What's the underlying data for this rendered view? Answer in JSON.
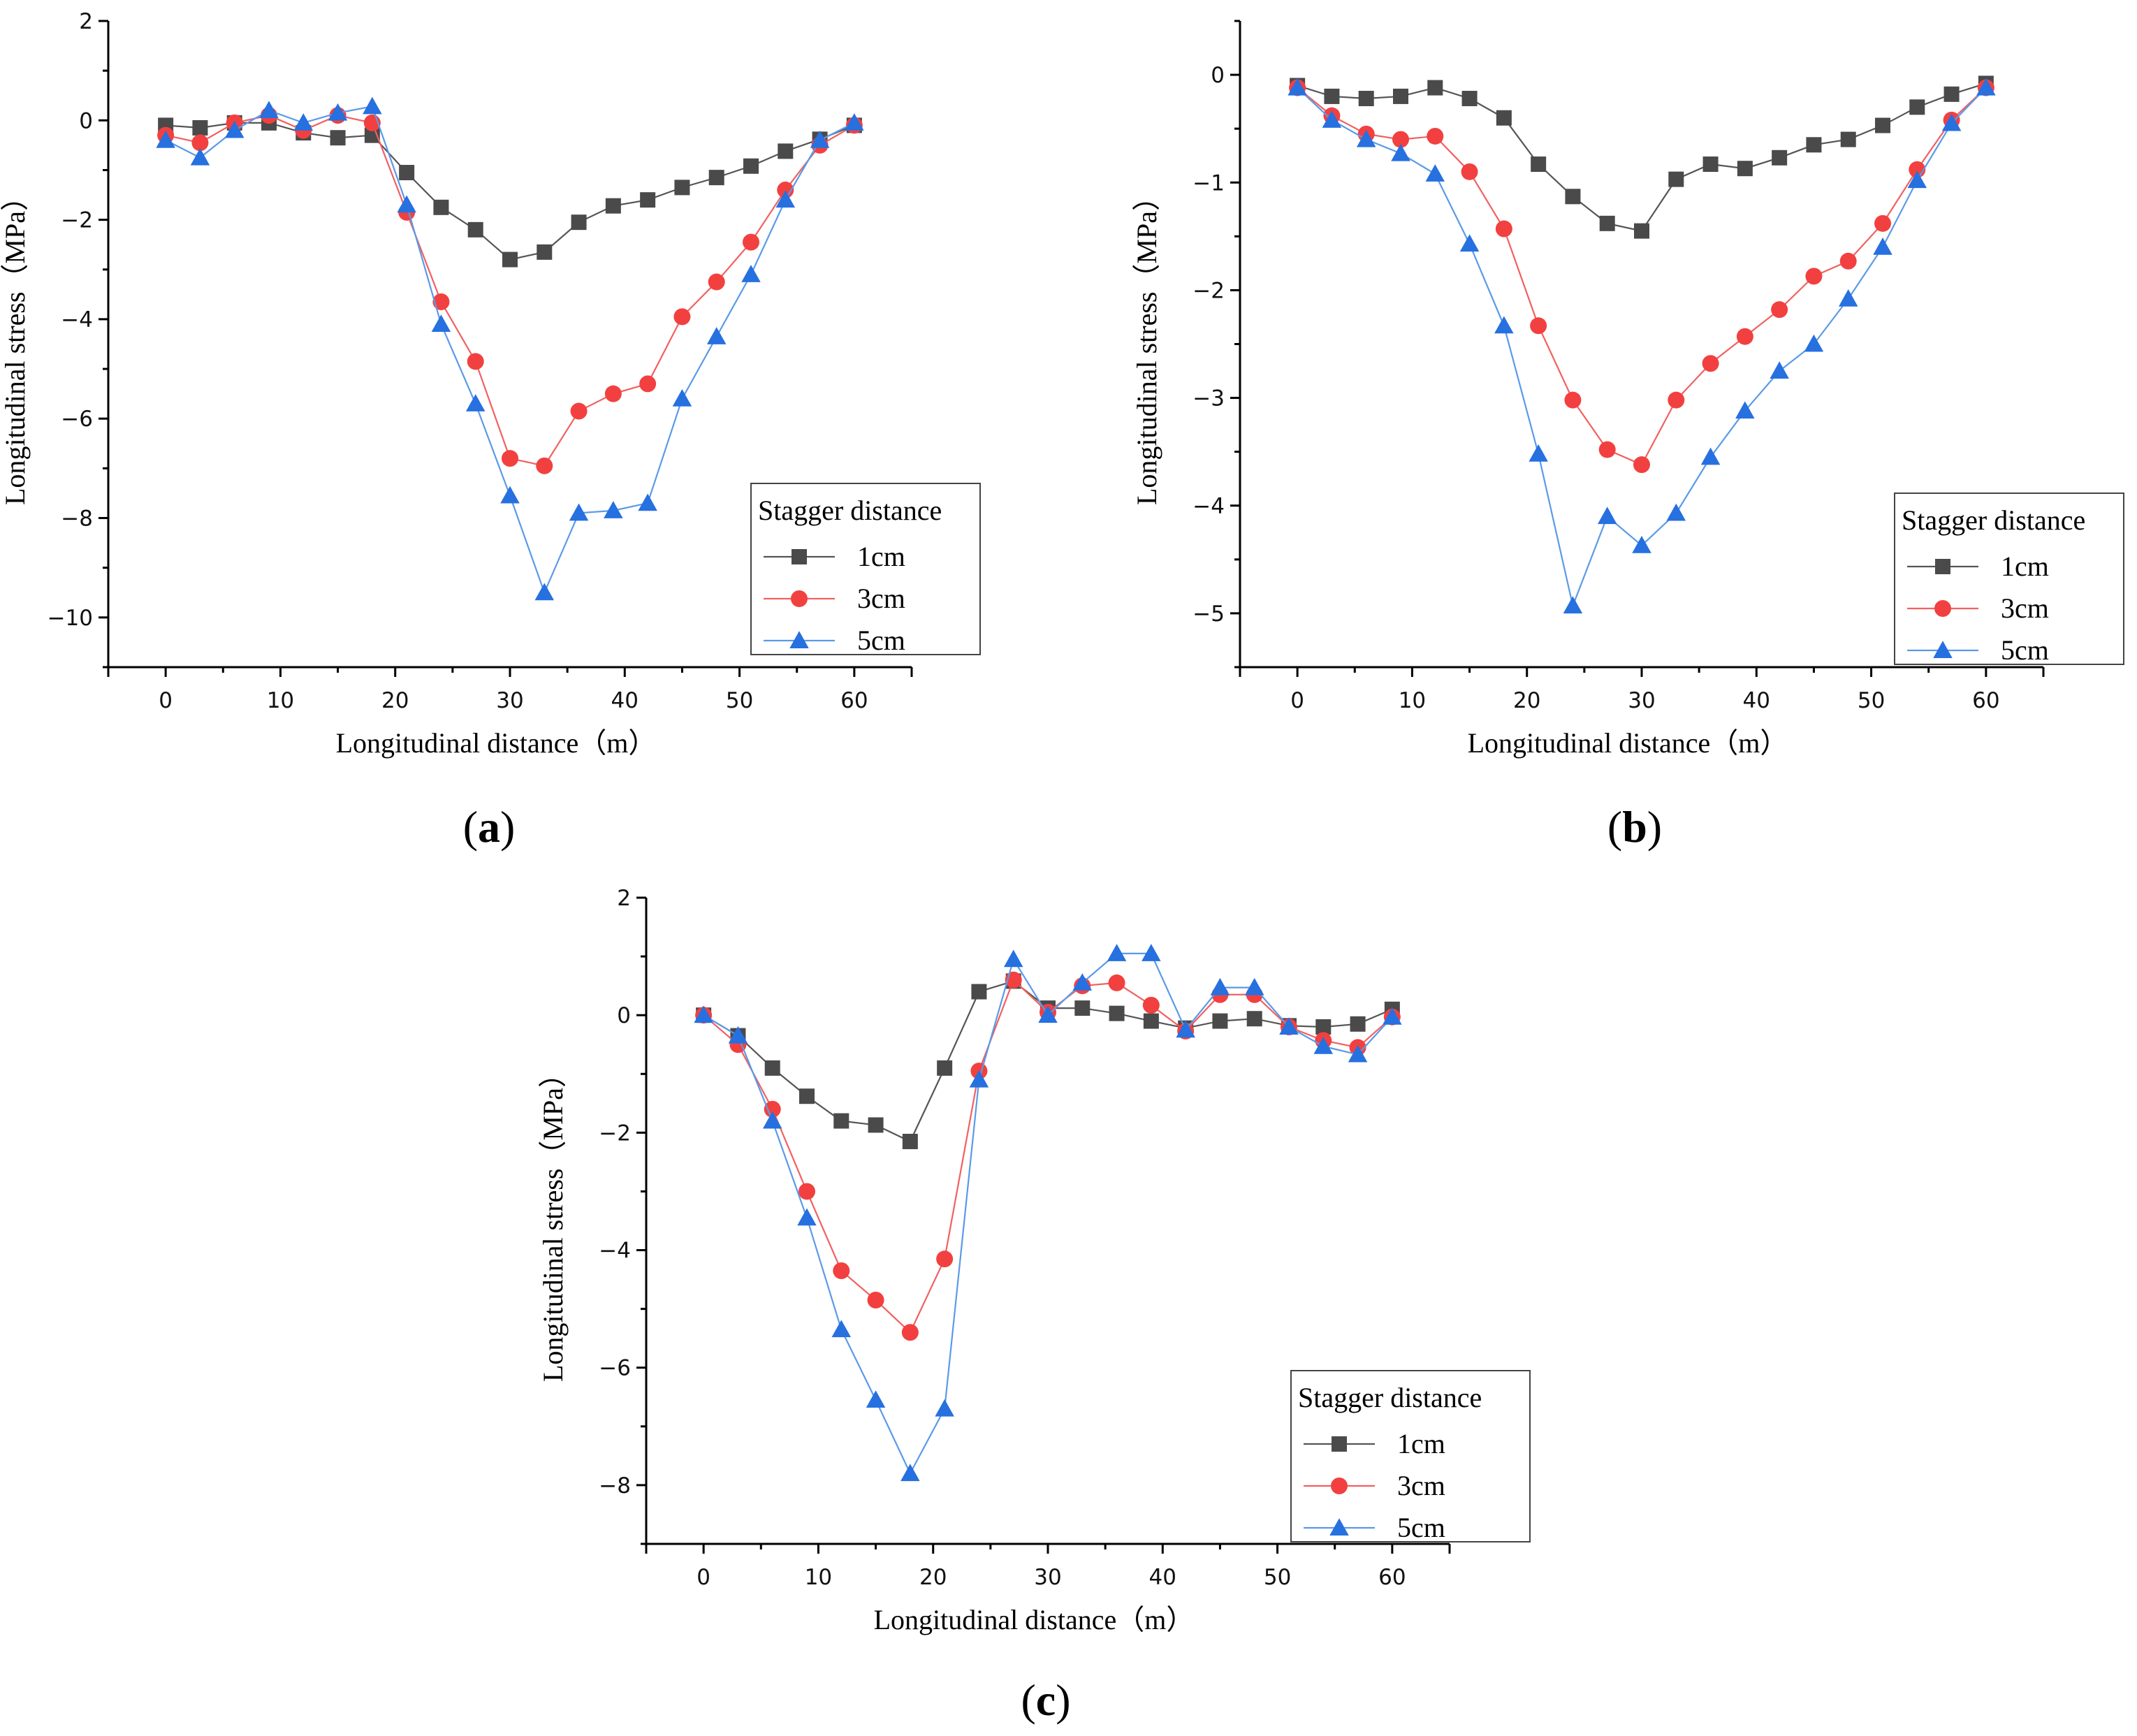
{
  "figure": {
    "colors": {
      "1cm": "#4a4a4a",
      "3cm": "#f24040",
      "5cm": "#2670e0"
    },
    "line_colors": {
      "1cm": "#555555",
      "3cm": "#f26060",
      "5cm": "#5a9ae8"
    }
  },
  "chart_data": [
    {
      "type": "line",
      "panel_label": {
        "open": "(",
        "letter": "a",
        "close": ")"
      },
      "xlabel": "Longitudinal distance（m）",
      "ylabel": "Longitudinal stress（MPa）",
      "xlim": [
        -5,
        65
      ],
      "ylim": [
        -11,
        2
      ],
      "xticks": [
        0,
        10,
        20,
        30,
        40,
        50,
        60
      ],
      "xtick_labels": [
        "0",
        "10",
        "20",
        "30",
        "40",
        "50",
        "60"
      ],
      "yticks": [
        2,
        0,
        -2,
        -4,
        -6,
        -8,
        -10
      ],
      "ytick_labels": [
        "2",
        "0",
        "−2",
        "−4",
        "−6",
        "−8",
        "−10"
      ],
      "legend": {
        "title": "Stagger distance",
        "position": "right-middle"
      },
      "x": [
        0,
        3,
        6,
        9,
        12,
        15,
        18,
        21,
        24,
        27,
        30,
        33,
        36,
        39,
        42,
        45,
        48,
        51,
        54,
        57,
        60
      ],
      "series": [
        {
          "name": "1cm",
          "marker": "square",
          "values": [
            -0.1,
            -0.15,
            -0.05,
            -0.05,
            -0.25,
            -0.35,
            -0.3,
            -1.05,
            -1.75,
            -2.2,
            -2.8,
            -2.65,
            -2.05,
            -1.72,
            -1.6,
            -1.35,
            -1.15,
            -0.92,
            -0.62,
            -0.38,
            -0.1
          ]
        },
        {
          "name": "3cm",
          "marker": "circle",
          "values": [
            -0.3,
            -0.45,
            -0.05,
            0.1,
            -0.2,
            0.1,
            -0.05,
            -1.85,
            -3.65,
            -4.85,
            -6.8,
            -6.95,
            -5.85,
            -5.5,
            -5.3,
            -3.95,
            -3.25,
            -2.45,
            -1.4,
            -0.5,
            -0.1
          ]
        },
        {
          "name": "5cm",
          "marker": "triangle",
          "values": [
            -0.4,
            -0.75,
            -0.2,
            0.2,
            -0.05,
            0.15,
            0.28,
            -1.7,
            -4.1,
            -5.7,
            -7.55,
            -9.5,
            -7.9,
            -7.85,
            -7.7,
            -5.6,
            -4.35,
            -3.1,
            -1.6,
            -0.4,
            -0.05
          ]
        }
      ]
    },
    {
      "type": "line",
      "panel_label": {
        "open": "(",
        "letter": "b",
        "close": ")"
      },
      "xlabel": "Longitudinal distance（m）",
      "ylabel": "Longitudinal stress（MPa）",
      "xlim": [
        -5,
        65
      ],
      "ylim": [
        -5.5,
        0.5
      ],
      "xticks": [
        0,
        10,
        20,
        30,
        40,
        50,
        60
      ],
      "xtick_labels": [
        "0",
        "10",
        "20",
        "30",
        "40",
        "50",
        "60"
      ],
      "yticks": [
        0,
        -1,
        -2,
        -3,
        -4,
        -5
      ],
      "ytick_labels": [
        "0",
        "−1",
        "−2",
        "−3",
        "−4",
        "−5"
      ],
      "legend": {
        "title": "Stagger distance",
        "position": "right-middle"
      },
      "x": [
        0,
        3,
        6,
        9,
        12,
        15,
        18,
        21,
        24,
        27,
        30,
        33,
        36,
        39,
        42,
        45,
        48,
        51,
        54,
        57,
        60
      ],
      "series": [
        {
          "name": "1cm",
          "marker": "square",
          "values": [
            -0.1,
            -0.2,
            -0.22,
            -0.2,
            -0.12,
            -0.22,
            -0.4,
            -0.83,
            -1.13,
            -1.38,
            -1.45,
            -0.97,
            -0.83,
            -0.87,
            -0.77,
            -0.65,
            -0.6,
            -0.47,
            -0.3,
            -0.18,
            -0.08
          ]
        },
        {
          "name": "3cm",
          "marker": "circle",
          "values": [
            -0.12,
            -0.38,
            -0.55,
            -0.6,
            -0.57,
            -0.9,
            -1.43,
            -2.33,
            -3.02,
            -3.48,
            -3.62,
            -3.02,
            -2.68,
            -2.43,
            -2.18,
            -1.87,
            -1.73,
            -1.38,
            -0.88,
            -0.42,
            -0.12
          ]
        },
        {
          "name": "5cm",
          "marker": "triangle",
          "values": [
            -0.12,
            -0.42,
            -0.6,
            -0.73,
            -0.92,
            -1.57,
            -2.33,
            -3.52,
            -4.93,
            -4.1,
            -4.37,
            -4.07,
            -3.55,
            -3.12,
            -2.75,
            -2.5,
            -2.08,
            -1.6,
            -0.98,
            -0.45,
            -0.12
          ]
        }
      ]
    },
    {
      "type": "line",
      "panel_label": {
        "open": "(",
        "letter": "c",
        "close": ")"
      },
      "xlabel": "Longitudinal distance（m）",
      "ylabel": "Longitudinal stress（MPa）",
      "xlim": [
        -5,
        65
      ],
      "ylim": [
        -9,
        2
      ],
      "xticks": [
        0,
        10,
        20,
        30,
        40,
        50,
        60
      ],
      "xtick_labels": [
        "0",
        "10",
        "20",
        "30",
        "40",
        "50",
        "60"
      ],
      "yticks": [
        2,
        0,
        -2,
        -4,
        -6,
        -8
      ],
      "ytick_labels": [
        "2",
        "0",
        "−2",
        "−4",
        "−6",
        "−8"
      ],
      "legend": {
        "title": "Stagger distance",
        "position": "bottom-right"
      },
      "x": [
        0,
        3,
        6,
        9,
        12,
        15,
        18,
        21,
        24,
        27,
        30,
        33,
        36,
        39,
        42,
        45,
        48,
        51,
        54,
        57,
        60
      ],
      "series": [
        {
          "name": "1cm",
          "marker": "square",
          "values": [
            0.0,
            -0.35,
            -0.9,
            -1.38,
            -1.8,
            -1.87,
            -2.15,
            -0.9,
            0.4,
            0.58,
            0.12,
            0.12,
            0.03,
            -0.1,
            -0.22,
            -0.1,
            -0.06,
            -0.18,
            -0.2,
            -0.15,
            0.1
          ]
        },
        {
          "name": "3cm",
          "marker": "circle",
          "values": [
            0.0,
            -0.5,
            -1.6,
            -3.0,
            -4.35,
            -4.85,
            -5.4,
            -4.15,
            -0.95,
            0.6,
            0.05,
            0.5,
            0.55,
            0.17,
            -0.27,
            0.35,
            0.35,
            -0.2,
            -0.43,
            -0.55,
            -0.03
          ]
        },
        {
          "name": "5cm",
          "marker": "triangle",
          "values": [
            0.0,
            -0.35,
            -1.8,
            -3.45,
            -5.35,
            -6.55,
            -7.8,
            -6.7,
            -1.1,
            0.95,
            0.0,
            0.55,
            1.05,
            1.05,
            -0.25,
            0.47,
            0.47,
            -0.2,
            -0.53,
            -0.67,
            -0.03
          ]
        }
      ]
    }
  ]
}
